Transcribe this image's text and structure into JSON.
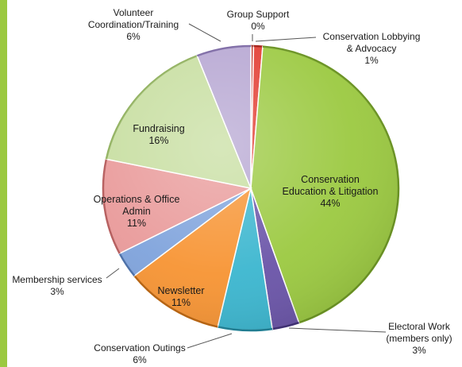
{
  "chart_data": {
    "type": "pie",
    "title": "",
    "series": [
      {
        "values": [
          0.3,
          1,
          44,
          3,
          6,
          11,
          3,
          11,
          16,
          6
        ],
        "categories": [
          "Group Support",
          "Conservation Lobbying & Advocacy",
          "Conservation Education & Litigation",
          "Electoral Work (members only)",
          "Conservation Outings",
          "Newsletter",
          "Membership services",
          "Operations & Office Admin",
          "Fundraising",
          "Volunteer Coordination/Training"
        ]
      }
    ],
    "slices": [
      {
        "name": "Group Support",
        "value": 0.3,
        "label_lines": [
          "Group Support",
          "0%"
        ],
        "color": "#c0392b",
        "color_dark": "#8e1e14"
      },
      {
        "name": "Conservation Lobbying & Advocacy",
        "value": 1,
        "label_lines": [
          "Conservation Lobbying",
          "& Advocacy",
          "1%"
        ],
        "color": "#e23a2f",
        "color_dark": "#a41c14"
      },
      {
        "name": "Conservation Education & Litigation",
        "value": 44,
        "label_lines": [
          "Conservation",
          "Education & Litigation",
          "44%"
        ],
        "color": "#9bc940",
        "color_dark": "#6a9322"
      },
      {
        "name": "Electoral Work (members only)",
        "value": 3,
        "label_lines": [
          "Electoral Work",
          "(members only)",
          "3%"
        ],
        "color": "#6a54a8",
        "color_dark": "#3f2f74"
      },
      {
        "name": "Conservation Outings",
        "value": 6,
        "label_lines": [
          "Conservation Outings",
          "6%"
        ],
        "color": "#3bb6cf",
        "color_dark": "#1f7f94"
      },
      {
        "name": "Newsletter",
        "value": 11,
        "label_lines": [
          "Newsletter",
          "11%"
        ],
        "color": "#f79433",
        "color_dark": "#b8630f"
      },
      {
        "name": "Membership services",
        "value": 3,
        "label_lines": [
          "Membership services",
          "3%"
        ],
        "color": "#7fa3dc",
        "color_dark": "#4a6fa8"
      },
      {
        "name": "Operations & Office Admin",
        "value": 11,
        "label_lines": [
          "Operations & Office",
          "Admin",
          "11%"
        ],
        "color": "#e99a9a",
        "color_dark": "#b65d5d"
      },
      {
        "name": "Fundraising",
        "value": 16,
        "label_lines": [
          "Fundraising",
          "16%"
        ],
        "color": "#c7dea0",
        "color_dark": "#92b260"
      },
      {
        "name": "Volunteer Coordination/Training",
        "value": 6,
        "label_lines": [
          "Volunteer",
          "Coordination/Training",
          "6%"
        ],
        "color": "#b6a6d2",
        "color_dark": "#7d6aa5"
      }
    ],
    "legend": "none",
    "start_angle_deg": 0,
    "direction": "clockwise"
  }
}
